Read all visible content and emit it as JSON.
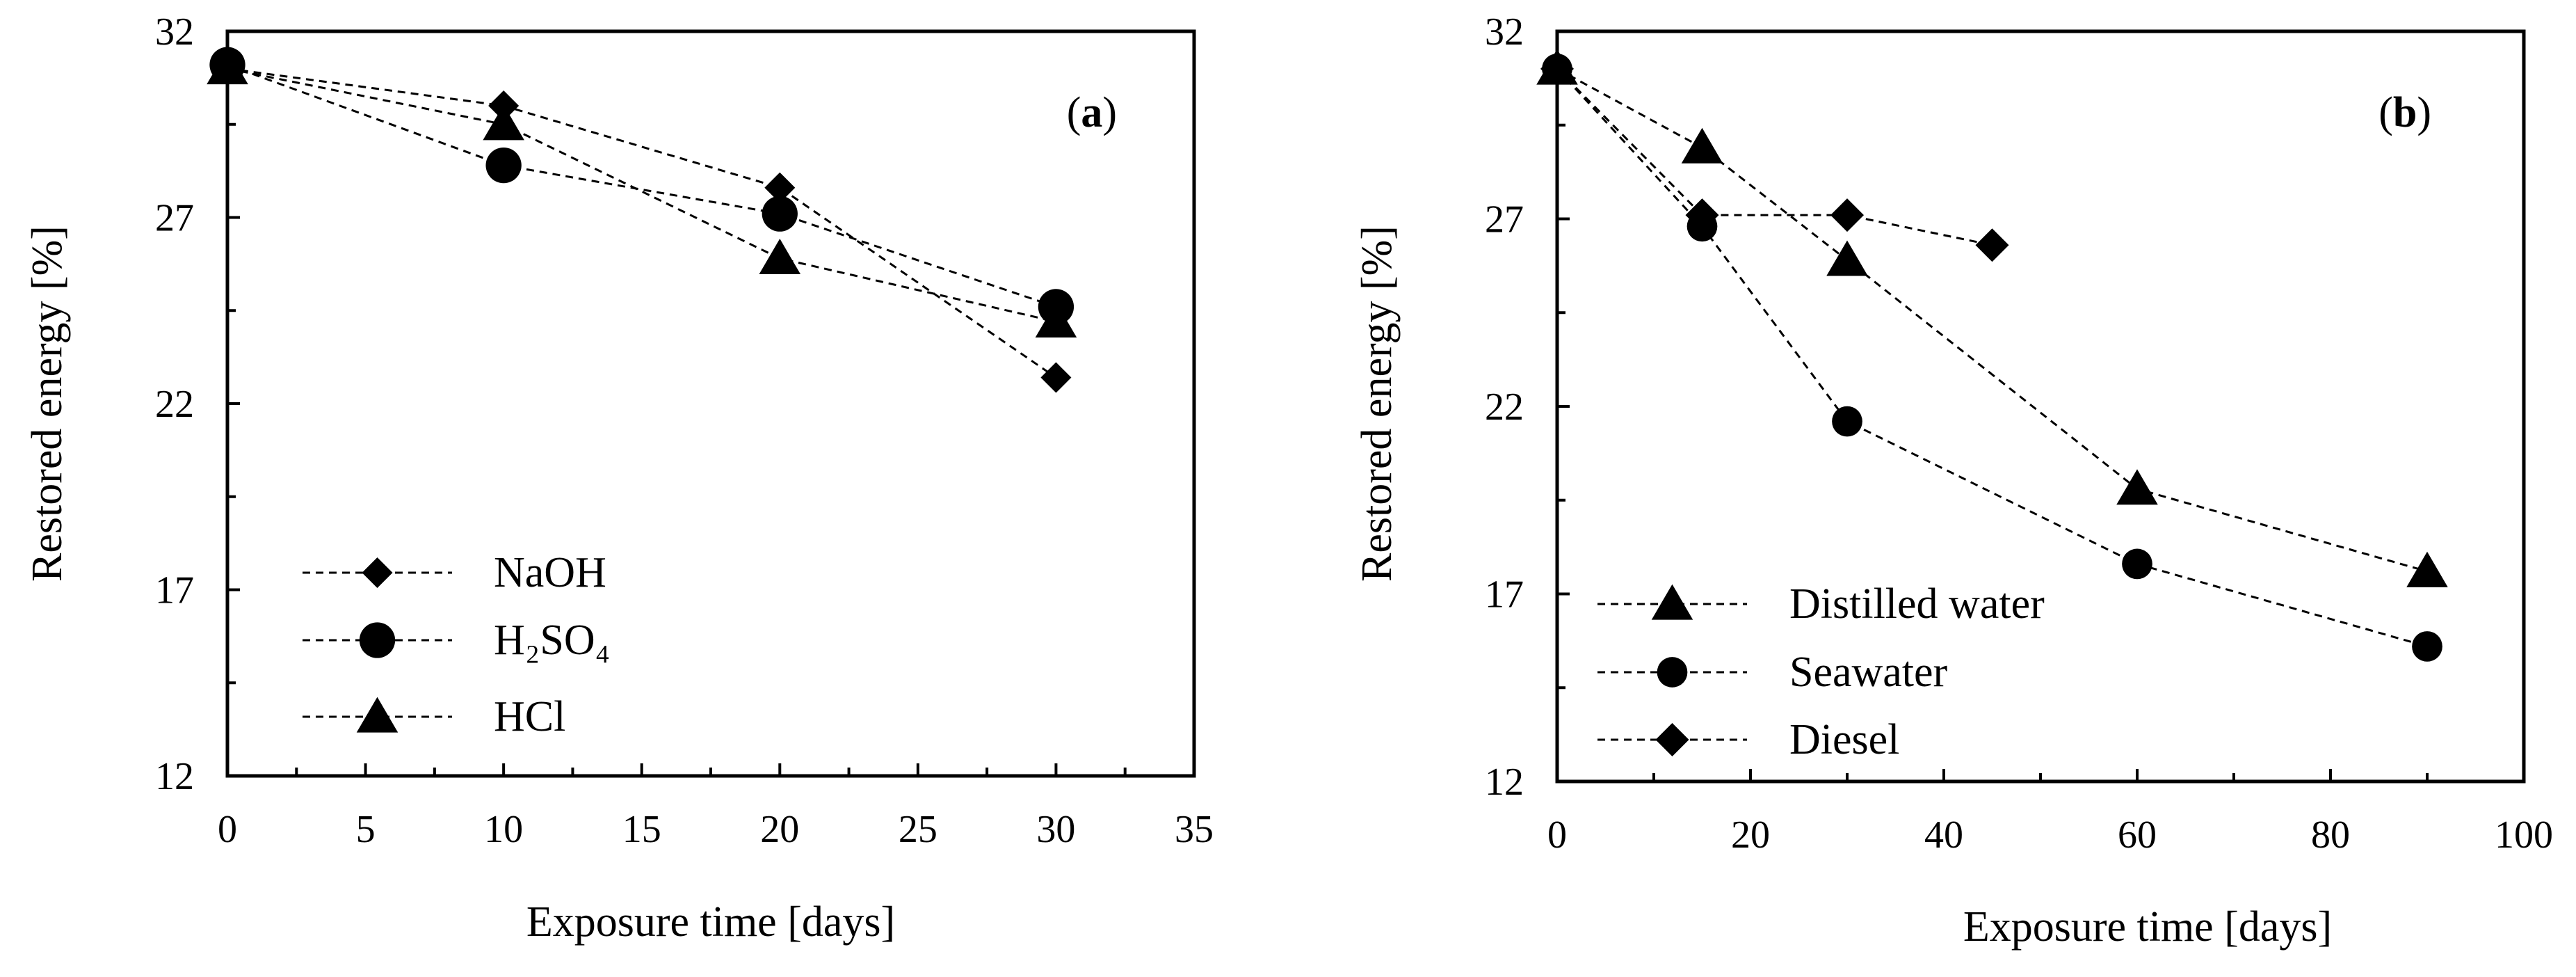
{
  "chart_data": [
    {
      "type": "line",
      "panel_label": "a",
      "xlabel": "Exposure time [days]",
      "ylabel": "Restored energy [%]",
      "xlim": [
        0,
        35
      ],
      "ylim": [
        12,
        32
      ],
      "xticks": [
        0,
        5,
        10,
        15,
        20,
        25,
        30,
        35
      ],
      "yticks": [
        12,
        17,
        22,
        27,
        32
      ],
      "grid": false,
      "legend_position": "bottom-left",
      "series": [
        {
          "name": "NaOH",
          "marker": "diamond",
          "x": [
            0,
            10,
            20,
            30
          ],
          "y": [
            31.0,
            30.0,
            27.8,
            22.7
          ]
        },
        {
          "name": "H2SO4",
          "display_name": "H₂SO₄",
          "marker": "circle",
          "x": [
            0,
            10,
            20,
            30
          ],
          "y": [
            31.1,
            28.4,
            27.1,
            24.6
          ]
        },
        {
          "name": "HCl",
          "marker": "triangle",
          "x": [
            0,
            10,
            20,
            30
          ],
          "y": [
            31.0,
            29.5,
            25.9,
            24.2
          ]
        }
      ]
    },
    {
      "type": "line",
      "panel_label": "b",
      "xlabel": "Exposure time [days]",
      "ylabel": "Restored energy [%]",
      "xlim": [
        0,
        100
      ],
      "ylim": [
        12,
        32
      ],
      "xticks": [
        0,
        20,
        40,
        60,
        80,
        100
      ],
      "yticks": [
        12,
        17,
        22,
        27,
        32
      ],
      "grid": false,
      "legend_position": "bottom-left",
      "series": [
        {
          "name": "Distilled water",
          "marker": "triangle",
          "x": [
            0,
            15,
            30,
            60,
            90
          ],
          "y": [
            31.0,
            28.9,
            25.9,
            19.8,
            17.6
          ]
        },
        {
          "name": "Seawater",
          "marker": "circle",
          "x": [
            0,
            15,
            30,
            60,
            90
          ],
          "y": [
            31.0,
            26.8,
            21.6,
            17.8,
            15.6
          ]
        },
        {
          "name": "Diesel",
          "marker": "diamond",
          "x": [
            0,
            15,
            30,
            45
          ],
          "y": [
            31.0,
            27.1,
            27.1,
            26.3
          ]
        }
      ]
    }
  ]
}
